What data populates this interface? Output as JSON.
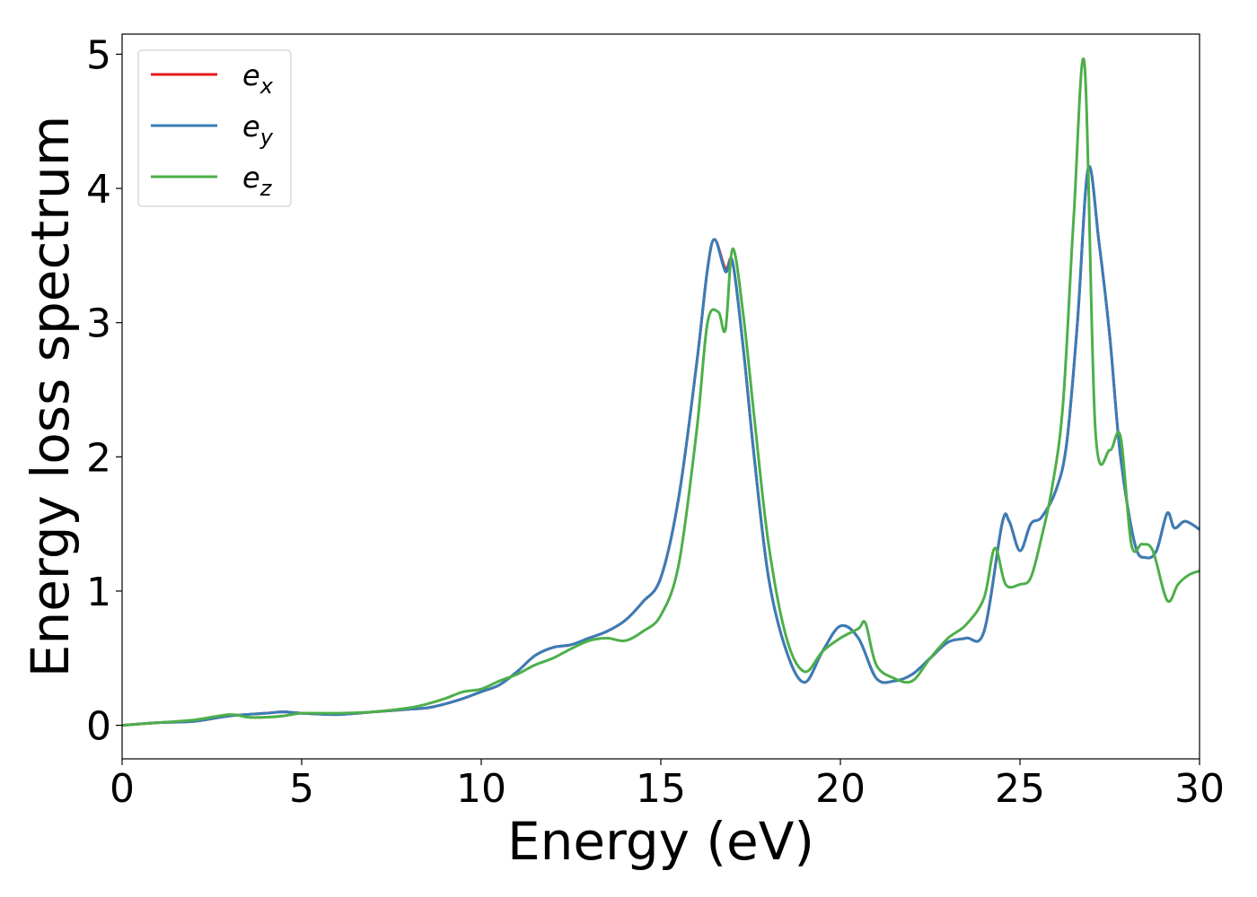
{
  "chart_data": {
    "type": "line",
    "xlabel": "Energy (eV)",
    "ylabel": "Energy loss spectrum",
    "xlim": [
      0,
      30
    ],
    "ylim": [
      -0.25,
      5.15
    ],
    "xticks": [
      "0",
      "5",
      "10",
      "15",
      "20",
      "25",
      "30"
    ],
    "yticks": [
      "0",
      "1",
      "2",
      "3",
      "4",
      "5"
    ],
    "grid": false,
    "legend_position": "top-left",
    "series": [
      {
        "name": "e_x",
        "label_base": "e",
        "label_sub": "x",
        "color": "#e41a1c",
        "x": [
          0,
          1,
          2,
          3,
          4,
          4.5,
          5,
          6,
          7,
          8,
          8.5,
          9,
          9.5,
          10,
          10.5,
          11,
          11.5,
          12,
          12.5,
          13,
          13.5,
          14,
          14.5,
          15,
          15.5,
          16,
          16.3,
          16.5,
          16.8,
          17,
          17.3,
          17.6,
          18,
          18.5,
          19,
          19.5,
          20,
          20.5,
          21,
          21.5,
          22,
          22.5,
          23,
          23.5,
          24,
          24.5,
          24.7,
          25,
          25.3,
          25.6,
          26,
          26.3,
          26.6,
          26.9,
          27.2,
          27.5,
          27.8,
          28.2,
          28.5,
          28.8,
          29.1,
          29.3,
          29.6,
          30
        ],
        "y": [
          0.0,
          0.02,
          0.03,
          0.07,
          0.09,
          0.1,
          0.09,
          0.08,
          0.1,
          0.12,
          0.13,
          0.16,
          0.2,
          0.25,
          0.3,
          0.4,
          0.52,
          0.58,
          0.6,
          0.65,
          0.7,
          0.78,
          0.92,
          1.1,
          1.7,
          2.7,
          3.4,
          3.62,
          3.4,
          3.45,
          2.8,
          2.0,
          1.1,
          0.55,
          0.32,
          0.55,
          0.74,
          0.65,
          0.35,
          0.33,
          0.38,
          0.5,
          0.62,
          0.65,
          0.7,
          1.5,
          1.52,
          1.3,
          1.5,
          1.55,
          1.75,
          2.1,
          3.0,
          4.15,
          3.6,
          2.9,
          2.0,
          1.35,
          1.25,
          1.3,
          1.58,
          1.47,
          1.52,
          1.46
        ]
      },
      {
        "name": "e_y",
        "label_base": "e",
        "label_sub": "y",
        "color": "#377eb8",
        "x": [
          0,
          1,
          2,
          3,
          4,
          4.5,
          5,
          6,
          7,
          8,
          8.5,
          9,
          9.5,
          10,
          10.5,
          11,
          11.5,
          12,
          12.5,
          13,
          13.5,
          14,
          14.5,
          15,
          15.5,
          16,
          16.3,
          16.5,
          16.8,
          17,
          17.3,
          17.6,
          18,
          18.5,
          19,
          19.5,
          20,
          20.5,
          21,
          21.5,
          22,
          22.5,
          23,
          23.5,
          24,
          24.5,
          24.7,
          25,
          25.3,
          25.6,
          26,
          26.3,
          26.6,
          26.9,
          27.2,
          27.5,
          27.8,
          28.2,
          28.5,
          28.8,
          29.1,
          29.3,
          29.6,
          30
        ],
        "y": [
          0.0,
          0.02,
          0.03,
          0.07,
          0.09,
          0.1,
          0.09,
          0.08,
          0.1,
          0.12,
          0.13,
          0.16,
          0.2,
          0.25,
          0.3,
          0.4,
          0.52,
          0.58,
          0.6,
          0.65,
          0.7,
          0.78,
          0.92,
          1.1,
          1.7,
          2.7,
          3.4,
          3.62,
          3.38,
          3.45,
          2.8,
          2.0,
          1.1,
          0.55,
          0.32,
          0.55,
          0.74,
          0.65,
          0.35,
          0.33,
          0.38,
          0.5,
          0.62,
          0.65,
          0.7,
          1.5,
          1.52,
          1.3,
          1.5,
          1.55,
          1.75,
          2.1,
          3.0,
          4.15,
          3.6,
          2.9,
          2.0,
          1.35,
          1.25,
          1.3,
          1.58,
          1.47,
          1.52,
          1.46
        ]
      },
      {
        "name": "e_z",
        "label_base": "e",
        "label_sub": "z",
        "color": "#4daf4a",
        "x": [
          0,
          1,
          2,
          3,
          3.5,
          4,
          4.5,
          5,
          6,
          7,
          8,
          8.5,
          9,
          9.5,
          10,
          10.5,
          11,
          11.5,
          12,
          12.5,
          13,
          13.5,
          14,
          14.5,
          15,
          15.5,
          16,
          16.3,
          16.6,
          16.8,
          17,
          17.3,
          17.6,
          18,
          18.5,
          19,
          19.5,
          20,
          20.5,
          20.7,
          21,
          21.5,
          22,
          22.5,
          23,
          23.5,
          24,
          24.3,
          24.6,
          25,
          25.3,
          25.6,
          25.9,
          26.2,
          26.5,
          26.8,
          27.1,
          27.5,
          27.8,
          28.1,
          28.4,
          28.7,
          29.1,
          29.4,
          29.7,
          30
        ],
        "y": [
          0.0,
          0.02,
          0.04,
          0.08,
          0.06,
          0.06,
          0.07,
          0.09,
          0.09,
          0.1,
          0.13,
          0.16,
          0.2,
          0.25,
          0.27,
          0.33,
          0.38,
          0.45,
          0.5,
          0.57,
          0.63,
          0.65,
          0.63,
          0.7,
          0.82,
          1.2,
          2.2,
          3.0,
          3.08,
          2.95,
          3.55,
          3.05,
          2.3,
          1.35,
          0.65,
          0.4,
          0.55,
          0.65,
          0.72,
          0.76,
          0.45,
          0.35,
          0.33,
          0.5,
          0.65,
          0.75,
          0.95,
          1.32,
          1.05,
          1.05,
          1.1,
          1.4,
          1.78,
          2.4,
          3.8,
          4.92,
          2.2,
          2.05,
          2.15,
          1.35,
          1.35,
          1.3,
          0.93,
          1.05,
          1.12,
          1.15
        ]
      }
    ]
  }
}
